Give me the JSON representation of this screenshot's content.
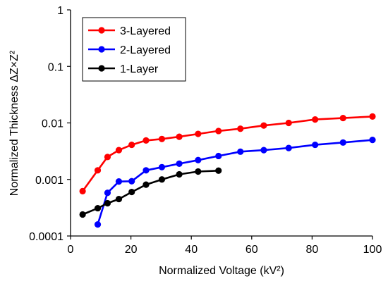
{
  "chart_data": {
    "type": "line",
    "title": "",
    "xlabel": "Normalized Voltage (kV²)",
    "ylabel": "Normalized Thickness ΔZ×Z²",
    "xlim": [
      0,
      100
    ],
    "ylim": [
      0.0001,
      1
    ],
    "yscale": "log",
    "xticks": [
      "0",
      "20",
      "40",
      "60",
      "80",
      "100"
    ],
    "yticks": [
      "0.0001",
      "0.001",
      "0.01",
      "0.1",
      "1"
    ],
    "grid": false,
    "legend_position": "top-left",
    "series": [
      {
        "name": "3-Layered",
        "color": "#ff0000",
        "x": [
          4,
          9,
          12.25,
          16,
          20.25,
          25,
          30.25,
          36,
          42.25,
          49,
          56.25,
          64,
          72.25,
          81,
          90.25,
          100
        ],
        "y": [
          0.00062,
          0.00145,
          0.0025,
          0.0033,
          0.0041,
          0.0049,
          0.0052,
          0.0057,
          0.0064,
          0.0072,
          0.0079,
          0.009,
          0.01,
          0.0115,
          0.0122,
          0.013
        ]
      },
      {
        "name": "2-Layered",
        "color": "#0000ff",
        "x": [
          9,
          12.25,
          16,
          20.25,
          25,
          30.25,
          36,
          42.25,
          49,
          56.25,
          64,
          72.25,
          81,
          90.25,
          100
        ],
        "y": [
          0.00016,
          0.00058,
          0.00092,
          0.00093,
          0.00145,
          0.00165,
          0.0019,
          0.0022,
          0.0026,
          0.0031,
          0.0033,
          0.0036,
          0.0041,
          0.0045,
          0.005
        ]
      },
      {
        "name": "1-Layer",
        "color": "#000000",
        "x": [
          4,
          9,
          12.25,
          16,
          20.25,
          25,
          30.25,
          36,
          42.25,
          49
        ],
        "y": [
          0.00024,
          0.00031,
          0.00038,
          0.00045,
          0.0006,
          0.00081,
          0.001,
          0.00123,
          0.00138,
          0.00143
        ]
      }
    ]
  }
}
